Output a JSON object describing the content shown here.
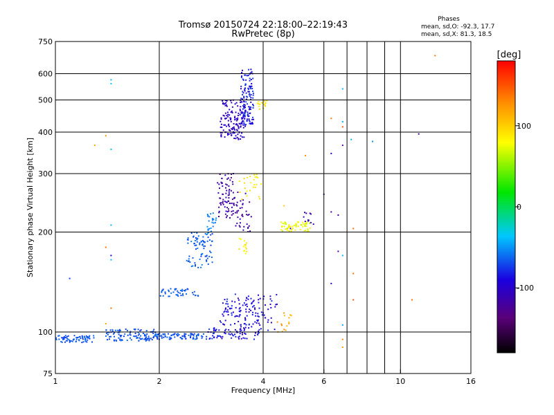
{
  "chart_data": {
    "type": "scatter",
    "title": "Tromsø 20150724 22:18:00–22:19:43",
    "subtitle": "RwPretec (8p)",
    "xlabel": "Frequency [MHz]",
    "ylabel": "Stationary phase Virtual Height [km]",
    "x_scale": "log2",
    "y_scale": "log",
    "xlim": [
      1,
      16
    ],
    "ylim": [
      75,
      750
    ],
    "x_ticks": [
      1,
      2,
      4,
      6,
      10,
      16
    ],
    "x_tick_labels": [
      "1",
      "2",
      "4",
      "6",
      "10",
      "16"
    ],
    "x_gridlines": [
      2,
      4,
      6,
      7,
      8,
      9,
      10
    ],
    "y_ticks": [
      75,
      100,
      200,
      300,
      400,
      500,
      600,
      750
    ],
    "y_tick_labels": [
      "75",
      "100",
      "200",
      "300",
      "400",
      "500",
      "600",
      "750"
    ],
    "y_gridlines": [
      100,
      200,
      300,
      400,
      500,
      600
    ],
    "grid": true,
    "legend_placement": "top-right",
    "stats": {
      "heading": "Phases",
      "o_line": "mean, sd,O: -92.3, 17.7",
      "x_line": "mean, sd,X:  81.3, 18.5"
    },
    "colorbar": {
      "label": "[deg]",
      "min": -180,
      "max": 180,
      "ticks": [
        -100,
        0,
        100
      ],
      "tick_labels": [
        "-100",
        "0",
        "100"
      ],
      "colormap": "rainbow (black-purple-blue-cyan-green-yellow-red)"
    },
    "clusters": [
      {
        "f": [
          1.0,
          1.3
        ],
        "h": [
          93,
          98
        ],
        "phase": [
          -75,
          -60
        ],
        "n": 70
      },
      {
        "f": [
          1.4,
          1.95
        ],
        "h": [
          94,
          102
        ],
        "phase": [
          -75,
          -60
        ],
        "n": 110
      },
      {
        "f": [
          1.95,
          2.75
        ],
        "h": [
          95,
          99
        ],
        "phase": [
          -75,
          -60
        ],
        "n": 90
      },
      {
        "f": [
          2.75,
          3.0
        ],
        "h": [
          95,
          103
        ],
        "phase": [
          -95,
          -65
        ],
        "n": 25
      },
      {
        "f": [
          3.0,
          3.9
        ],
        "h": [
          95,
          130
        ],
        "phase": [
          -110,
          -75
        ],
        "n": 150
      },
      {
        "f": [
          2.0,
          2.6
        ],
        "h": [
          128,
          135
        ],
        "phase": [
          -75,
          -60
        ],
        "n": 45
      },
      {
        "f": [
          2.4,
          2.85
        ],
        "h": [
          155,
          200
        ],
        "phase": [
          -75,
          -55
        ],
        "n": 80
      },
      {
        "f": [
          2.75,
          2.95
        ],
        "h": [
          195,
          230
        ],
        "phase": [
          -60,
          -50
        ],
        "n": 25
      },
      {
        "f": [
          2.95,
          3.3
        ],
        "h": [
          220,
          300
        ],
        "phase": [
          -125,
          -105
        ],
        "n": 80
      },
      {
        "f": [
          3.3,
          3.7
        ],
        "h": [
          200,
          265
        ],
        "phase": [
          -125,
          -105
        ],
        "n": 40
      },
      {
        "f": [
          3.35,
          3.95
        ],
        "h": [
          250,
          300
        ],
        "phase": [
          75,
          100
        ],
        "n": 25
      },
      {
        "f": [
          3.4,
          3.6
        ],
        "h": [
          165,
          195
        ],
        "phase": [
          75,
          100
        ],
        "n": 15
      },
      {
        "f": [
          4.5,
          5.5
        ],
        "h": [
          200,
          215
        ],
        "phase": [
          60,
          90
        ],
        "n": 60
      },
      {
        "f": [
          5.2,
          5.6
        ],
        "h": [
          210,
          230
        ],
        "phase": [
          -120,
          -105
        ],
        "n": 12
      },
      {
        "f": [
          3.0,
          3.55
        ],
        "h": [
          380,
          500
        ],
        "phase": [
          -110,
          -95
        ],
        "n": 140
      },
      {
        "f": [
          3.45,
          3.75
        ],
        "h": [
          420,
          620
        ],
        "phase": [
          -100,
          -70
        ],
        "n": 130
      },
      {
        "f": [
          3.85,
          4.1
        ],
        "h": [
          465,
          500
        ],
        "phase": [
          80,
          100
        ],
        "n": 15
      },
      {
        "f": [
          3.85,
          4.4
        ],
        "h": [
          100,
          130
        ],
        "phase": [
          -110,
          -75
        ],
        "n": 35
      },
      {
        "f": [
          4.4,
          4.9
        ],
        "h": [
          100,
          115
        ],
        "phase": [
          100,
          130
        ],
        "n": 15
      }
    ],
    "sparse_points": [
      {
        "x": 1.45,
        "y": 575,
        "phase": -40
      },
      {
        "x": 1.45,
        "y": 560,
        "phase": -35
      },
      {
        "x": 1.4,
        "y": 390,
        "phase": 130
      },
      {
        "x": 1.3,
        "y": 365,
        "phase": 120
      },
      {
        "x": 1.45,
        "y": 355,
        "phase": -40
      },
      {
        "x": 1.45,
        "y": 210,
        "phase": -40
      },
      {
        "x": 1.4,
        "y": 180,
        "phase": 140
      },
      {
        "x": 1.45,
        "y": 170,
        "phase": -90
      },
      {
        "x": 1.45,
        "y": 165,
        "phase": -40
      },
      {
        "x": 1.1,
        "y": 145,
        "phase": -75
      },
      {
        "x": 1.45,
        "y": 118,
        "phase": 140
      },
      {
        "x": 1.4,
        "y": 106,
        "phase": 120
      },
      {
        "x": 6.3,
        "y": 440,
        "phase": 135
      },
      {
        "x": 6.3,
        "y": 345,
        "phase": -95
      },
      {
        "x": 6.8,
        "y": 540,
        "phase": -40
      },
      {
        "x": 6.8,
        "y": 430,
        "phase": -40
      },
      {
        "x": 6.8,
        "y": 415,
        "phase": 150
      },
      {
        "x": 6.8,
        "y": 365,
        "phase": -120
      },
      {
        "x": 7.2,
        "y": 380,
        "phase": -45
      },
      {
        "x": 8.3,
        "y": 375,
        "phase": -50
      },
      {
        "x": 11.3,
        "y": 395,
        "phase": -120
      },
      {
        "x": 12.6,
        "y": 680,
        "phase": 135
      },
      {
        "x": 5.3,
        "y": 340,
        "phase": 130
      },
      {
        "x": 6.0,
        "y": 260,
        "phase": -120
      },
      {
        "x": 6.3,
        "y": 230,
        "phase": -120
      },
      {
        "x": 6.6,
        "y": 225,
        "phase": -115
      },
      {
        "x": 7.3,
        "y": 205,
        "phase": 140
      },
      {
        "x": 6.6,
        "y": 175,
        "phase": -120
      },
      {
        "x": 6.8,
        "y": 170,
        "phase": -40
      },
      {
        "x": 7.3,
        "y": 150,
        "phase": 140
      },
      {
        "x": 6.3,
        "y": 140,
        "phase": -95
      },
      {
        "x": 7.3,
        "y": 125,
        "phase": 150
      },
      {
        "x": 6.8,
        "y": 105,
        "phase": -45
      },
      {
        "x": 6.8,
        "y": 95,
        "phase": 130
      },
      {
        "x": 6.8,
        "y": 90,
        "phase": 120
      },
      {
        "x": 10.8,
        "y": 125,
        "phase": 140
      },
      {
        "x": 4.8,
        "y": 205,
        "phase": -110
      },
      {
        "x": 4.6,
        "y": 240,
        "phase": 100
      }
    ]
  }
}
